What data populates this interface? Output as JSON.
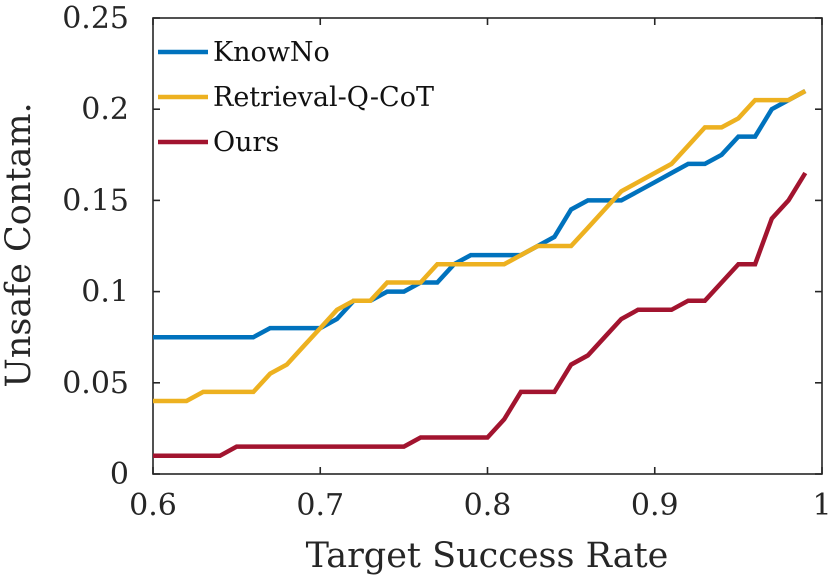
{
  "chart_data": {
    "type": "line",
    "title": "",
    "xlabel": "Target Success Rate",
    "ylabel": "Unsafe Contam.",
    "xlim": [
      0.6,
      1.0
    ],
    "ylim": [
      0,
      0.25
    ],
    "xticks": [
      0.6,
      0.7,
      0.8,
      0.9,
      1.0
    ],
    "xtick_labels": [
      "0.6",
      "0.7",
      "0.8",
      "0.9",
      "1"
    ],
    "yticks": [
      0,
      0.05,
      0.1,
      0.15,
      0.2,
      0.25
    ],
    "ytick_labels": [
      "0",
      "0.05",
      "0.1",
      "0.15",
      "0.2",
      "0.25"
    ],
    "grid": false,
    "legend_position": "top-left",
    "x": [
      0.6,
      0.61,
      0.62,
      0.63,
      0.64,
      0.65,
      0.66,
      0.67,
      0.68,
      0.69,
      0.7,
      0.71,
      0.72,
      0.73,
      0.74,
      0.75,
      0.76,
      0.77,
      0.78,
      0.79,
      0.8,
      0.81,
      0.82,
      0.83,
      0.84,
      0.85,
      0.86,
      0.87,
      0.88,
      0.89,
      0.9,
      0.91,
      0.92,
      0.93,
      0.94,
      0.95,
      0.96,
      0.97,
      0.98,
      0.99
    ],
    "series": [
      {
        "name": "KnowNo",
        "color": "#0072BD",
        "values": [
          0.075,
          0.075,
          0.075,
          0.075,
          0.075,
          0.075,
          0.075,
          0.08,
          0.08,
          0.08,
          0.08,
          0.085,
          0.095,
          0.095,
          0.1,
          0.1,
          0.105,
          0.105,
          0.115,
          0.12,
          0.12,
          0.12,
          0.12,
          0.125,
          0.13,
          0.145,
          0.15,
          0.15,
          0.15,
          0.155,
          0.16,
          0.165,
          0.17,
          0.17,
          0.175,
          0.185,
          0.185,
          0.2,
          0.205,
          0.21
        ]
      },
      {
        "name": "Retrieval-Q-CoT",
        "color": "#EDB120",
        "values": [
          0.04,
          0.04,
          0.04,
          0.045,
          0.045,
          0.045,
          0.045,
          0.055,
          0.06,
          0.07,
          0.08,
          0.09,
          0.095,
          0.095,
          0.105,
          0.105,
          0.105,
          0.115,
          0.115,
          0.115,
          0.115,
          0.115,
          0.12,
          0.125,
          0.125,
          0.125,
          0.135,
          0.145,
          0.155,
          0.16,
          0.165,
          0.17,
          0.18,
          0.19,
          0.19,
          0.195,
          0.205,
          0.205,
          0.205,
          0.21
        ]
      },
      {
        "name": "Ours",
        "color": "#A2142F",
        "values": [
          0.01,
          0.01,
          0.01,
          0.01,
          0.01,
          0.015,
          0.015,
          0.015,
          0.015,
          0.015,
          0.015,
          0.015,
          0.015,
          0.015,
          0.015,
          0.015,
          0.02,
          0.02,
          0.02,
          0.02,
          0.02,
          0.03,
          0.045,
          0.045,
          0.045,
          0.06,
          0.065,
          0.075,
          0.085,
          0.09,
          0.09,
          0.09,
          0.095,
          0.095,
          0.105,
          0.115,
          0.115,
          0.14,
          0.15,
          0.165
        ]
      }
    ]
  }
}
